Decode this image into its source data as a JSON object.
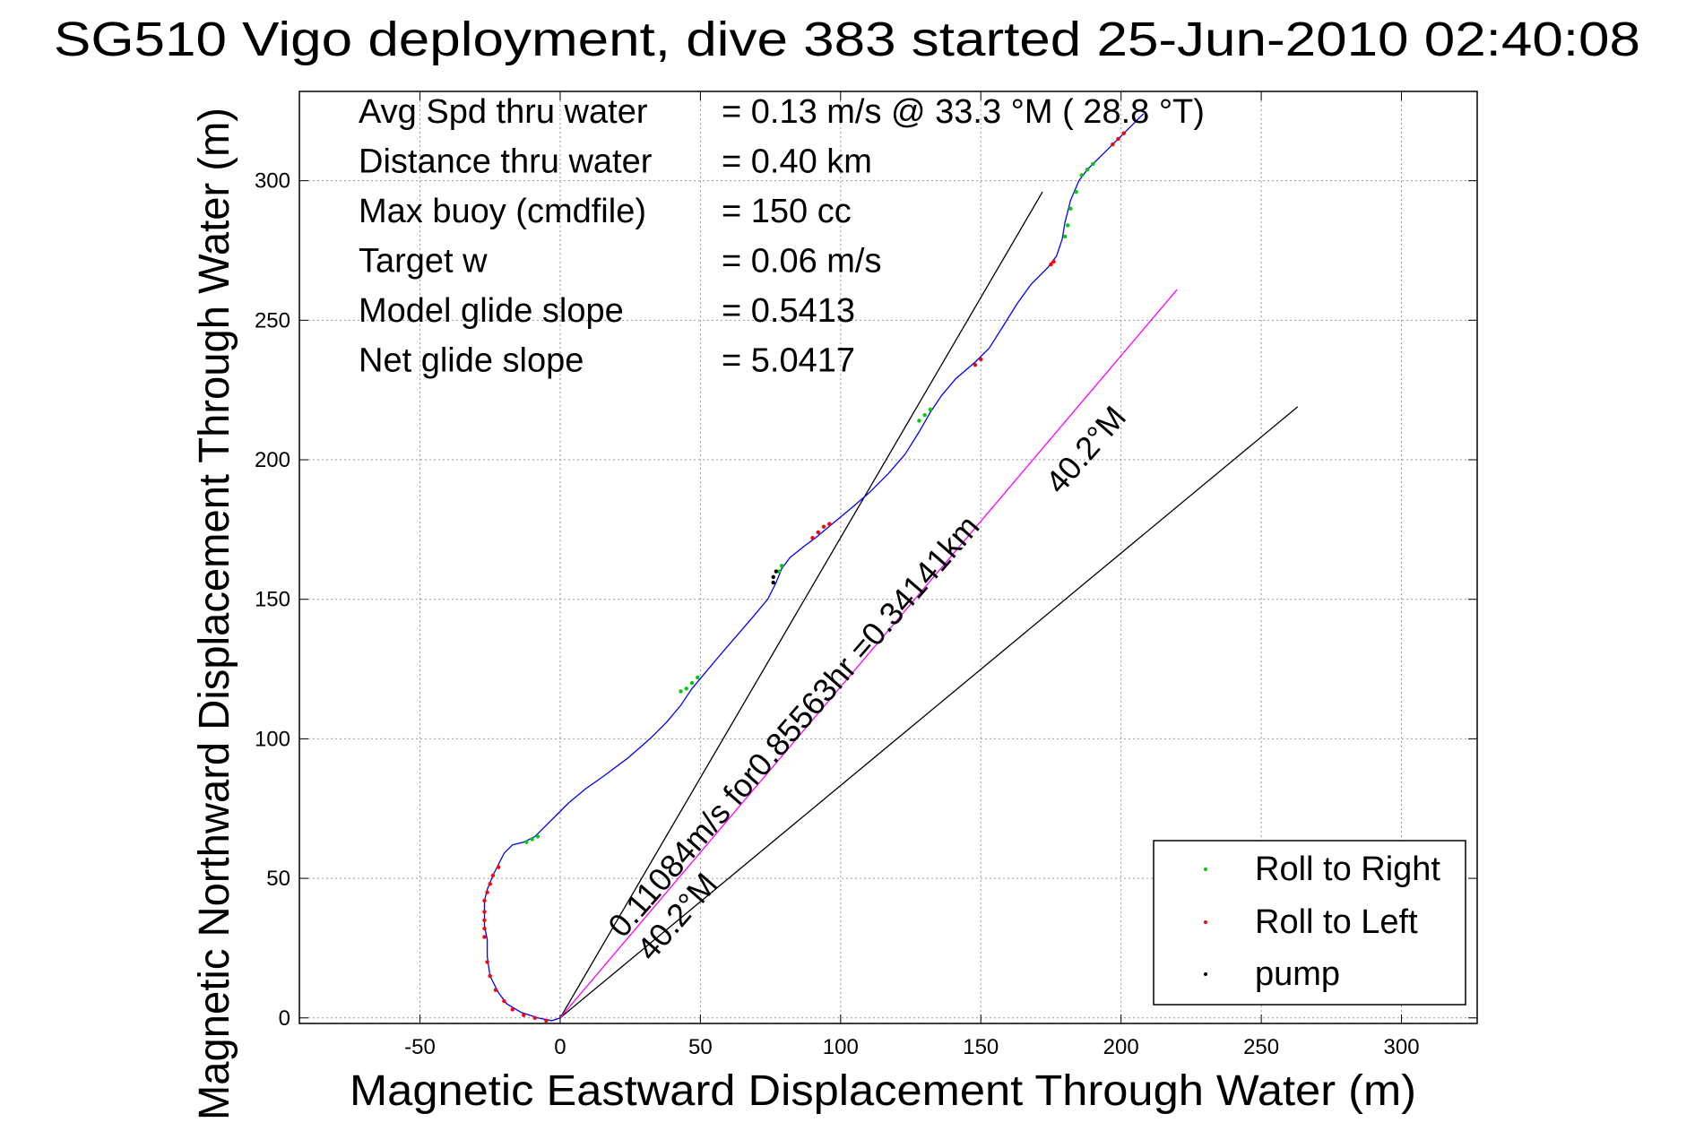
{
  "chart_data": {
    "type": "line",
    "title": "SG510 Vigo deployment, dive 383 started 25-Jun-2010 02:40:08",
    "xlabel": "Magnetic Eastward Displacement Through Water (m)",
    "ylabel": "Magnetic Northward Displacement Through Water (m)",
    "xlim": [
      -93,
      327
    ],
    "ylim": [
      -2,
      332
    ],
    "xticks": [
      -50,
      0,
      50,
      100,
      150,
      200,
      250,
      300
    ],
    "yticks": [
      0,
      50,
      100,
      150,
      200,
      250,
      300
    ],
    "grid": true,
    "legend_position": "bottom-right",
    "colors": {
      "track": "#0000ff",
      "roll_right": "#00cc00",
      "roll_left": "#ff0000",
      "pump": "#000000",
      "heading_line": "#ff00ff",
      "reference_lines": "#000000"
    },
    "info_rows": [
      {
        "label": "Avg Spd thru water",
        "value": "=  0.13 m/s @  33.3 °M ( 28.8 °T)"
      },
      {
        "label": "Distance thru water",
        "value": "=  0.40 km"
      },
      {
        "label": "Max buoy (cmdfile)",
        "value": "= 150 cc"
      },
      {
        "label": "Target w",
        "value": "= 0.06 m/s"
      },
      {
        "label": "Model glide slope",
        "value": "= 0.5413"
      },
      {
        "label": "Net glide slope",
        "value": "= 5.0417"
      }
    ],
    "annotations": [
      {
        "text": "0.11084m/s for0.85563hr =0.34141km"
      },
      {
        "text": "40.2°M"
      },
      {
        "text": "40.2°M"
      }
    ],
    "series": [
      {
        "name": "Roll to Right",
        "color": "#00cc00",
        "points": [
          [
            -12,
            63
          ],
          [
            -10,
            64
          ],
          [
            -8,
            65
          ],
          [
            43,
            117
          ],
          [
            45,
            118
          ],
          [
            47,
            120
          ],
          [
            49,
            122
          ],
          [
            78,
            160
          ],
          [
            79,
            162
          ],
          [
            128,
            214
          ],
          [
            130,
            216
          ],
          [
            132,
            218
          ],
          [
            180,
            280
          ],
          [
            181,
            284
          ],
          [
            182,
            290
          ],
          [
            184,
            296
          ],
          [
            186,
            302
          ],
          [
            188,
            304
          ],
          [
            190,
            306
          ]
        ]
      },
      {
        "name": "Roll to Left",
        "color": "#ff0000",
        "points": [
          [
            -22,
            54
          ],
          [
            -24,
            51
          ],
          [
            -25,
            48
          ],
          [
            -26,
            45
          ],
          [
            -27,
            42
          ],
          [
            -27,
            38
          ],
          [
            -27,
            35
          ],
          [
            -27,
            32
          ],
          [
            -27,
            29
          ],
          [
            -26,
            20
          ],
          [
            -25,
            15
          ],
          [
            -23,
            10
          ],
          [
            -20,
            6
          ],
          [
            -17,
            3
          ],
          [
            -13,
            1
          ],
          [
            -9,
            0
          ],
          [
            -5,
            -1
          ],
          [
            90,
            172
          ],
          [
            92,
            174
          ],
          [
            94,
            176
          ],
          [
            96,
            177
          ],
          [
            148,
            234
          ],
          [
            150,
            236
          ],
          [
            175,
            270
          ],
          [
            176,
            271
          ],
          [
            197,
            313
          ],
          [
            199,
            315
          ],
          [
            201,
            317
          ]
        ]
      },
      {
        "name": "pump",
        "color": "#000000",
        "points": [
          [
            76,
            156
          ],
          [
            76,
            158
          ],
          [
            77,
            160
          ]
        ]
      }
    ],
    "track": [
      [
        0,
        0
      ],
      [
        -3,
        -1
      ],
      [
        -8,
        0
      ],
      [
        -14,
        2
      ],
      [
        -19,
        5
      ],
      [
        -22,
        9
      ],
      [
        -25,
        15
      ],
      [
        -26,
        22
      ],
      [
        -26,
        28
      ],
      [
        -27,
        33
      ],
      [
        -27,
        38
      ],
      [
        -27,
        42
      ],
      [
        -26,
        46
      ],
      [
        -24,
        51
      ],
      [
        -22,
        55
      ],
      [
        -20,
        59
      ],
      [
        -17,
        62
      ],
      [
        -13,
        63
      ],
      [
        -9,
        65
      ],
      [
        -5,
        69
      ],
      [
        -1,
        73
      ],
      [
        3,
        77
      ],
      [
        9,
        82
      ],
      [
        16,
        87
      ],
      [
        24,
        93
      ],
      [
        32,
        100
      ],
      [
        38,
        106
      ],
      [
        43,
        112
      ],
      [
        47,
        118
      ],
      [
        52,
        124
      ],
      [
        57,
        130
      ],
      [
        63,
        137
      ],
      [
        69,
        144
      ],
      [
        74,
        150
      ],
      [
        77,
        156
      ],
      [
        79,
        161
      ],
      [
        82,
        165
      ],
      [
        87,
        169
      ],
      [
        91,
        172
      ],
      [
        97,
        177
      ],
      [
        103,
        182
      ],
      [
        110,
        188
      ],
      [
        117,
        195
      ],
      [
        123,
        202
      ],
      [
        128,
        210
      ],
      [
        132,
        217
      ],
      [
        136,
        223
      ],
      [
        141,
        229
      ],
      [
        148,
        235
      ],
      [
        153,
        240
      ],
      [
        158,
        248
      ],
      [
        163,
        256
      ],
      [
        168,
        263
      ],
      [
        174,
        269
      ],
      [
        177,
        273
      ],
      [
        179,
        279
      ],
      [
        180,
        285
      ],
      [
        182,
        293
      ],
      [
        185,
        300
      ],
      [
        188,
        304
      ],
      [
        192,
        308
      ],
      [
        196,
        312
      ],
      [
        200,
        316
      ],
      [
        204,
        320
      ],
      [
        208,
        324
      ]
    ],
    "lines": {
      "heading": [
        [
          0,
          0
        ],
        [
          220,
          261
        ]
      ],
      "reference_a": [
        [
          0,
          0
        ],
        [
          172,
          296
        ]
      ],
      "reference_b": [
        [
          0,
          0
        ],
        [
          263,
          219
        ]
      ]
    }
  }
}
